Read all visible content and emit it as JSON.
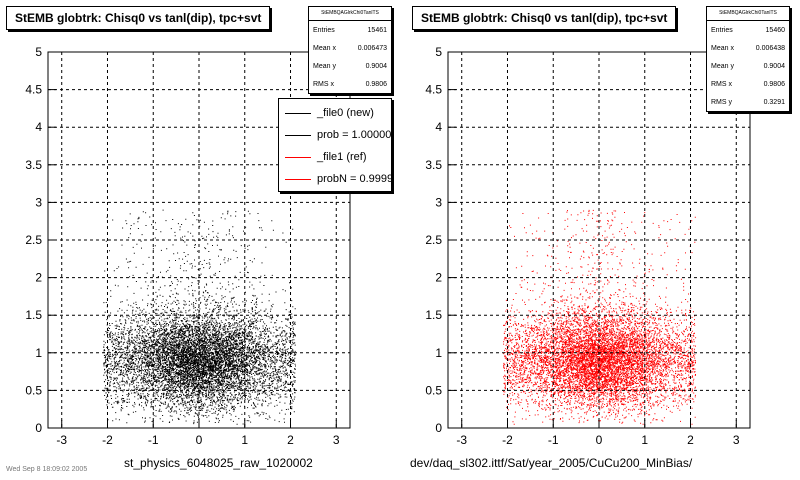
{
  "footer_text": "Wed Sep 8 18:09:02 2005",
  "chart_data": [
    {
      "type": "scatter",
      "title": "StEMB globtrk: Chisq0 vs tanl(dip), tpc+svt",
      "xlabel": "st_physics_6048025_raw_1020002",
      "ylabel": "",
      "xlim": [
        -3.3,
        3.3
      ],
      "ylim": [
        0,
        5
      ],
      "x_ticks": [
        "-3",
        "-2",
        "-1",
        "0",
        "1",
        "2",
        "3"
      ],
      "y_ticks": [
        "0",
        "0.5",
        "1",
        "1.5",
        "2",
        "2.5",
        "3",
        "3.5",
        "4",
        "4.5",
        "5"
      ],
      "grid": true,
      "marker_color": "#000000",
      "stats": {
        "header": "StEMBQAGlrkChi0TanlTS",
        "rows": [
          {
            "label": "Entries",
            "value": "15461"
          },
          {
            "label": "Mean x",
            "value": "0.006473"
          },
          {
            "label": "Mean y",
            "value": "0.9004"
          },
          {
            "label": "RMS x",
            "value": "0.9806"
          }
        ]
      },
      "legend": [
        {
          "label": "_file0 (new)",
          "color": "#000000"
        },
        {
          "label": "prob = 1.000000",
          "color": "#000000"
        },
        {
          "label": "_file1 (ref)",
          "color": "#ff0000"
        },
        {
          "label": "probN = 0.999999",
          "color": "#ff0000"
        }
      ],
      "distribution": {
        "x_range": [
          -2.1,
          2.1
        ],
        "y_mean": 0.9,
        "y_rms": 0.32,
        "x_rms": 0.98
      }
    },
    {
      "type": "scatter",
      "title": "StEMB globtrk: Chisq0 vs tanl(dip), tpc+svt",
      "xlabel": "dev/daq_sl302.ittf/Sat/year_2005/CuCu200_MinBias/",
      "ylabel": "",
      "xlim": [
        -3.3,
        3.3
      ],
      "ylim": [
        0,
        5
      ],
      "x_ticks": [
        "-3",
        "-2",
        "-1",
        "0",
        "1",
        "2",
        "3"
      ],
      "y_ticks": [
        "0",
        "0.5",
        "1",
        "1.5",
        "2",
        "2.5",
        "3",
        "3.5",
        "4",
        "4.5",
        "5"
      ],
      "grid": true,
      "marker_color": "#ff0000",
      "stats": {
        "header": "StEMBQAGlrkChi0TanlTS",
        "rows": [
          {
            "label": "Entries",
            "value": "15460"
          },
          {
            "label": "Mean x",
            "value": "0.006438"
          },
          {
            "label": "Mean y",
            "value": "0.9004"
          },
          {
            "label": "RMS x",
            "value": "0.9806"
          },
          {
            "label": "RMS y",
            "value": "0.3291"
          }
        ]
      },
      "distribution": {
        "x_range": [
          -2.1,
          2.1
        ],
        "y_mean": 0.9,
        "y_rms": 0.33,
        "x_rms": 0.98
      }
    }
  ]
}
